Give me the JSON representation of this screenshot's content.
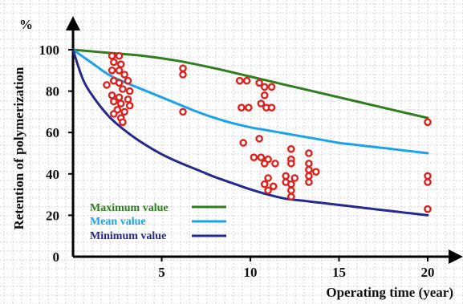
{
  "chart_data": {
    "type": "line",
    "title": "",
    "xlabel": "Operating time (year)",
    "ylabel": "Retention of polymerization",
    "y_unit": "%",
    "xlim": [
      0,
      20
    ],
    "ylim": [
      0,
      100
    ],
    "x_ticks": [
      "5",
      "10",
      "15",
      "20"
    ],
    "y_ticks": [
      "0",
      "20",
      "40",
      "60",
      "80",
      "100"
    ],
    "grid": true,
    "legend_position": "bottom-left",
    "series": [
      {
        "name": "Maximum value",
        "color": "#2e7d1f",
        "x": [
          0,
          2,
          4,
          6,
          8,
          10,
          12,
          14,
          16,
          18,
          20
        ],
        "y": [
          100,
          98.5,
          97,
          94.5,
          91,
          87,
          83,
          79,
          75,
          71,
          67
        ]
      },
      {
        "name": "Mean value",
        "color": "#1aa3e8",
        "x": [
          0,
          1,
          2,
          3,
          4,
          5,
          6,
          7,
          8,
          9,
          10,
          11,
          12,
          13,
          14,
          15,
          16,
          17,
          18,
          19,
          20
        ],
        "y": [
          100,
          94,
          88,
          84,
          80.5,
          77,
          73.5,
          70,
          67,
          64.5,
          62.5,
          61,
          59.5,
          58,
          56.5,
          55,
          54,
          53,
          52,
          51,
          50
        ]
      },
      {
        "name": "Minimum value",
        "color": "#232a8a",
        "x": [
          0,
          0.5,
          1,
          2,
          3,
          4,
          5,
          6,
          7,
          8,
          9,
          10,
          11,
          12,
          13,
          14,
          15,
          16,
          17,
          18,
          19,
          20
        ],
        "y": [
          100,
          87,
          79,
          68,
          60.5,
          54.5,
          49.5,
          45.5,
          42,
          38.5,
          35.5,
          32.5,
          30,
          28,
          27,
          26,
          25,
          24,
          23,
          22,
          21,
          20
        ]
      }
    ],
    "scatter": {
      "color": "#e0201c",
      "points": [
        [
          2.2,
          97
        ],
        [
          2.6,
          97
        ],
        [
          2.3,
          94
        ],
        [
          2.7,
          93
        ],
        [
          2.2,
          90
        ],
        [
          2.6,
          90
        ],
        [
          2.9,
          88
        ],
        [
          3.1,
          85
        ],
        [
          2.3,
          85
        ],
        [
          2.6,
          84
        ],
        [
          1.9,
          83
        ],
        [
          2.8,
          81
        ],
        [
          3.2,
          80
        ],
        [
          2.2,
          78
        ],
        [
          2.6,
          77
        ],
        [
          3.1,
          76
        ],
        [
          2.3,
          75
        ],
        [
          2.7,
          74
        ],
        [
          3.2,
          73
        ],
        [
          2.5,
          71
        ],
        [
          2.9,
          70
        ],
        [
          2.3,
          69
        ],
        [
          2.7,
          67
        ],
        [
          2.8,
          65
        ],
        [
          6.2,
          91
        ],
        [
          6.2,
          88
        ],
        [
          6.2,
          70
        ],
        [
          9.4,
          85
        ],
        [
          9.8,
          85
        ],
        [
          9.5,
          72
        ],
        [
          9.9,
          72
        ],
        [
          9.6,
          55
        ],
        [
          10.5,
          84
        ],
        [
          10.8,
          82
        ],
        [
          11.2,
          82
        ],
        [
          10.8,
          78
        ],
        [
          10.6,
          74
        ],
        [
          10.9,
          72
        ],
        [
          11.2,
          72
        ],
        [
          10.5,
          57
        ],
        [
          10.2,
          48
        ],
        [
          10.6,
          48
        ],
        [
          11.0,
          47
        ],
        [
          11.4,
          45
        ],
        [
          10.8,
          45
        ],
        [
          11.0,
          38
        ],
        [
          10.8,
          35
        ],
        [
          11.3,
          34
        ],
        [
          11.0,
          32
        ],
        [
          12.3,
          52
        ],
        [
          12.3,
          47
        ],
        [
          12.3,
          45
        ],
        [
          12.0,
          39
        ],
        [
          12.5,
          38
        ],
        [
          12.0,
          36
        ],
        [
          12.3,
          35
        ],
        [
          12.3,
          32
        ],
        [
          12.3,
          29
        ],
        [
          13.3,
          50
        ],
        [
          13.3,
          45
        ],
        [
          13.3,
          42
        ],
        [
          13.7,
          41
        ],
        [
          13.3,
          39
        ],
        [
          13.3,
          36
        ],
        [
          20,
          65
        ],
        [
          20,
          39
        ],
        [
          20,
          36
        ],
        [
          20,
          23
        ]
      ]
    }
  }
}
